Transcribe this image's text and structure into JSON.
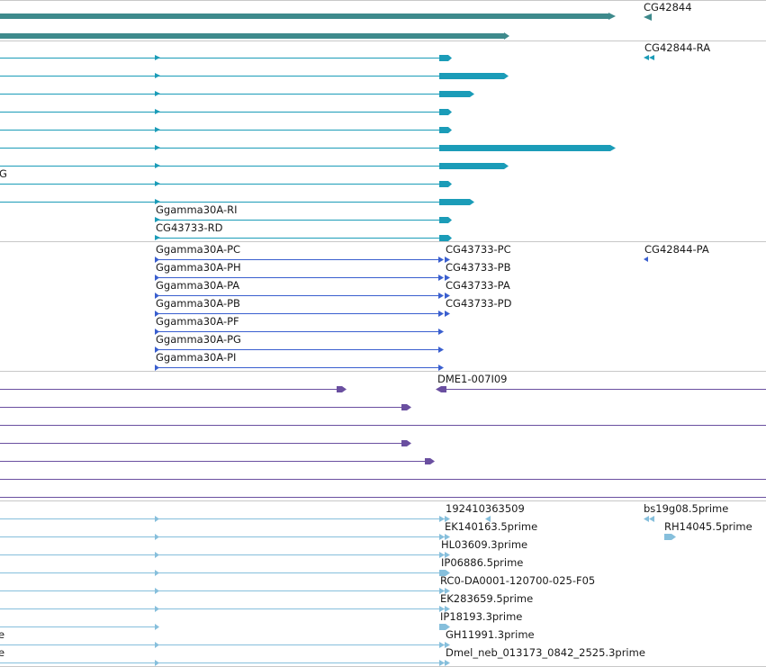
{
  "colors": {
    "gene": "#3e8a8c",
    "transcript": "#1b9cb8",
    "protein": "#3a5fcf",
    "alignment": "#6a4fa0",
    "est": "#86bfdc",
    "divider": "#c8c8c8"
  },
  "sections": {
    "genes": [
      {
        "label": "CG42844"
      }
    ],
    "transcripts": [
      {
        "label": "CG42844-RA"
      },
      {
        "label": "G"
      },
      {
        "label": "Ggamma30A-RI"
      },
      {
        "label": "CG43733-RD"
      }
    ],
    "proteins": [
      {
        "label": "Ggamma30A-PC"
      },
      {
        "label": "CG43733-PC"
      },
      {
        "label": "CG42844-PA"
      },
      {
        "label": "Ggamma30A-PH"
      },
      {
        "label": "CG43733-PB"
      },
      {
        "label": "Ggamma30A-PA"
      },
      {
        "label": "CG43733-PA"
      },
      {
        "label": "Ggamma30A-PB"
      },
      {
        "label": "CG43733-PD"
      },
      {
        "label": "Ggamma30A-PF"
      },
      {
        "label": "Ggamma30A-PG"
      },
      {
        "label": "Ggamma30A-PI"
      }
    ],
    "alignments": [
      {
        "label": "DME1-007I09"
      }
    ],
    "ests": [
      {
        "label": "192410363509"
      },
      {
        "label": "bs19g08.5prime"
      },
      {
        "label": "EK140163.5prime"
      },
      {
        "label": "RH14045.5prime"
      },
      {
        "label": "HL03609.3prime"
      },
      {
        "label": "IP06886.5prime"
      },
      {
        "label": "RC0-DA0001-120700-025-F05"
      },
      {
        "label": "EK283659.5prime"
      },
      {
        "label": "IP18193.3prime"
      },
      {
        "label": "e"
      },
      {
        "label": "GH11991.3prime"
      },
      {
        "label": "e"
      },
      {
        "label": "Dmel_neb_013173_0842_2525.3prime"
      }
    ]
  }
}
